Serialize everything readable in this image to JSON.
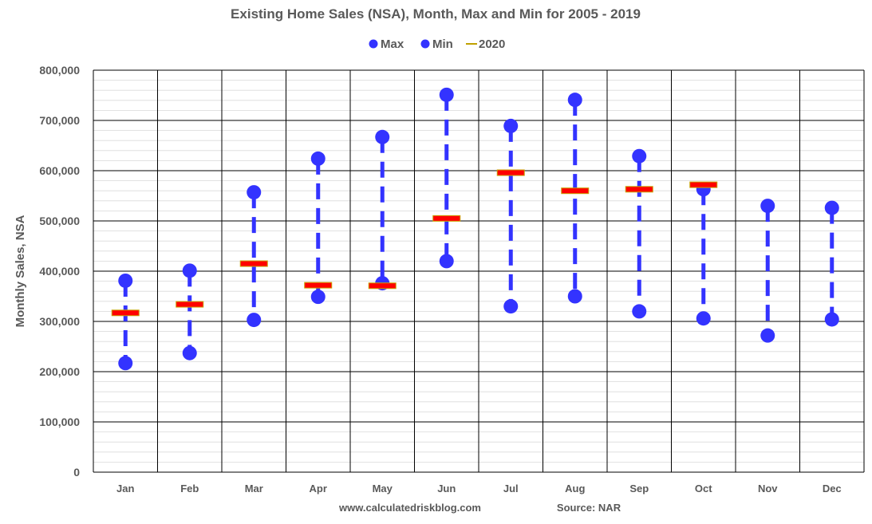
{
  "chart_data": {
    "type": "scatter",
    "title": "Existing Home Sales (NSA), Month, Max and Min for 2005 - 2019",
    "ylabel": "Monthly Sales, NSA",
    "xlabel": "",
    "ylim": [
      0,
      800000
    ],
    "yticks": [
      0,
      100000,
      200000,
      300000,
      400000,
      500000,
      600000,
      700000,
      800000
    ],
    "ytick_labels": [
      "0",
      "100,000",
      "200,000",
      "300,000",
      "400,000",
      "500,000",
      "600,000",
      "700,000",
      "800,000"
    ],
    "grid": true,
    "legend_position": "top-center",
    "categories": [
      "Jan",
      "Feb",
      "Mar",
      "Apr",
      "May",
      "Jun",
      "Jul",
      "Aug",
      "Sep",
      "Oct",
      "Nov",
      "Dec"
    ],
    "series": [
      {
        "name": "Max",
        "marker": "circle",
        "color": "#3333ff",
        "values": [
          381000,
          401000,
          557000,
          624000,
          667000,
          751000,
          689000,
          741000,
          629000,
          563000,
          530000,
          526000
        ]
      },
      {
        "name": "Min",
        "marker": "circle",
        "color": "#3333ff",
        "values": [
          217000,
          237000,
          303000,
          349000,
          376000,
          420000,
          330000,
          350000,
          320000,
          306000,
          272000,
          304000
        ]
      },
      {
        "name": "2020",
        "marker": "dash",
        "color": "#ff0000",
        "values": [
          317000,
          334000,
          415000,
          372000,
          371000,
          505000,
          596000,
          560000,
          563000,
          572000,
          null,
          null
        ]
      }
    ],
    "footer_left": "www.calculatedriskblog.com",
    "footer_right": "Source: NAR"
  }
}
